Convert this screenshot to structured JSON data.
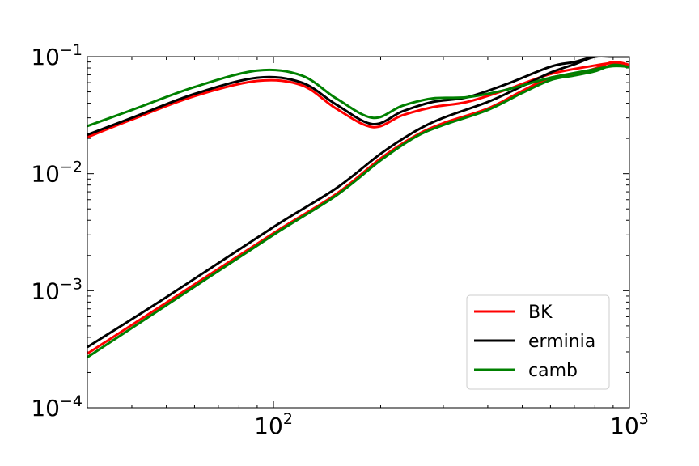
{
  "chart_data": {
    "type": "line",
    "title": "",
    "xlabel": "",
    "ylabel": "",
    "xscale": "log",
    "yscale": "log",
    "xlim": [
      30,
      1000
    ],
    "ylim": [
      0.0001,
      0.1
    ],
    "grid": false,
    "legend_position": "lower-right",
    "x_tick_labels": [
      {
        "value": 100,
        "base": "10",
        "exp": "2"
      },
      {
        "value": 1000,
        "base": "10",
        "exp": "3"
      }
    ],
    "y_tick_labels": [
      {
        "value": 0.0001,
        "base": "10",
        "exp": "−4"
      },
      {
        "value": 0.001,
        "base": "10",
        "exp": "−3"
      },
      {
        "value": 0.01,
        "base": "10",
        "exp": "−2"
      },
      {
        "value": 0.1,
        "base": "10",
        "exp": "−1"
      }
    ],
    "series": [
      {
        "name": "BK",
        "color": "#ff0000",
        "curve": "upper",
        "x": [
          30,
          40,
          60,
          90,
          120,
          150,
          190,
          230,
          280,
          350,
          450,
          600,
          800,
          900,
          1000
        ],
        "y": [
          0.0205,
          0.029,
          0.046,
          0.062,
          0.057,
          0.036,
          0.025,
          0.0315,
          0.037,
          0.041,
          0.052,
          0.071,
          0.084,
          0.088,
          0.085
        ]
      },
      {
        "name": "BK",
        "color": "#ff0000",
        "curve": "lower",
        "x": [
          30,
          50,
          100,
          150,
          200,
          250,
          300,
          400,
          500,
          600,
          700,
          800,
          900,
          1000
        ],
        "y": [
          0.00029,
          0.00079,
          0.0031,
          0.0067,
          0.0135,
          0.021,
          0.027,
          0.036,
          0.051,
          0.066,
          0.071,
          0.079,
          0.09,
          0.085
        ]
      },
      {
        "name": "erminia",
        "color": "#000000",
        "curve": "upper",
        "x": [
          30,
          40,
          60,
          90,
          120,
          150,
          190,
          230,
          280,
          350,
          450,
          600,
          700,
          800,
          900,
          1000
        ],
        "y": [
          0.0215,
          0.03,
          0.048,
          0.066,
          0.06,
          0.039,
          0.0265,
          0.034,
          0.041,
          0.045,
          0.058,
          0.082,
          0.09,
          0.1,
          0.1,
          0.1
        ]
      },
      {
        "name": "erminia",
        "color": "#000000",
        "curve": "lower",
        "x": [
          30,
          50,
          100,
          150,
          200,
          250,
          300,
          400,
          500,
          600,
          700,
          800,
          900,
          1000
        ],
        "y": [
          0.00033,
          0.00088,
          0.0035,
          0.0075,
          0.0148,
          0.023,
          0.03,
          0.041,
          0.056,
          0.073,
          0.086,
          0.1,
          0.1,
          0.1
        ]
      },
      {
        "name": "camb",
        "color": "#008000",
        "curve": "upper",
        "x": [
          30,
          40,
          60,
          90,
          120,
          150,
          190,
          230,
          280,
          350,
          450,
          600,
          800,
          900,
          1000
        ],
        "y": [
          0.0255,
          0.035,
          0.055,
          0.076,
          0.069,
          0.044,
          0.03,
          0.038,
          0.044,
          0.045,
          0.052,
          0.066,
          0.078,
          0.083,
          0.082
        ]
      },
      {
        "name": "camb",
        "color": "#008000",
        "curve": "lower",
        "x": [
          30,
          50,
          100,
          150,
          200,
          250,
          300,
          400,
          500,
          600,
          700,
          800,
          900,
          1000
        ],
        "y": [
          0.00027,
          0.00075,
          0.003,
          0.0065,
          0.013,
          0.0205,
          0.026,
          0.035,
          0.049,
          0.063,
          0.069,
          0.075,
          0.085,
          0.081
        ]
      }
    ],
    "legend": [
      {
        "label": "BK",
        "color": "#ff0000"
      },
      {
        "label": "erminia",
        "color": "#000000"
      },
      {
        "label": "camb",
        "color": "#008000"
      }
    ]
  }
}
